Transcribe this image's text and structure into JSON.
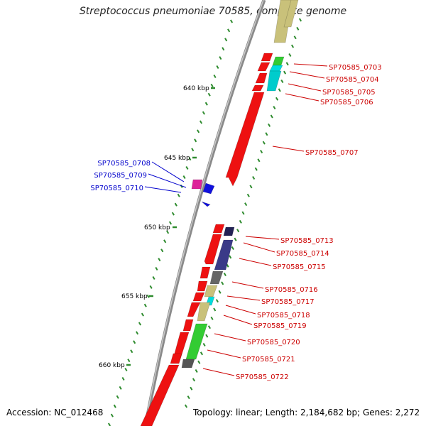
{
  "title": "Streptococcus pneumoniae 70585, complete genome",
  "footer": {
    "accession": "Accession: NC_012468",
    "topology": "Topology: linear; Length: 2,184,682 bp; Genes: 2,272"
  },
  "colors": {
    "backbone": "#8a8a8a",
    "tick": "#2e8b2e",
    "forward_label": "#cc0000",
    "reverse_label": "#0000cc"
  },
  "kbp_ticks": [
    {
      "label": "640 kbp",
      "pos_kbp": 640
    },
    {
      "label": "645 kbp",
      "pos_kbp": 645
    },
    {
      "label": "650 kbp",
      "pos_kbp": 650
    },
    {
      "label": "655 kbp",
      "pos_kbp": 655
    },
    {
      "label": "660 kbp",
      "pos_kbp": 660
    }
  ],
  "gene_labels_right": [
    "SP70585_0703",
    "SP70585_0704",
    "SP70585_0705",
    "SP70585_0706",
    "SP70585_0707",
    "SP70585_0713",
    "SP70585_0714",
    "SP70585_0715",
    "SP70585_0716",
    "SP70585_0717",
    "SP70585_0718",
    "SP70585_0719",
    "SP70585_0720",
    "SP70585_0721",
    "SP70585_0722"
  ],
  "gene_labels_left": [
    "SP70585_0708",
    "SP70585_0709",
    "SP70585_0710"
  ]
}
